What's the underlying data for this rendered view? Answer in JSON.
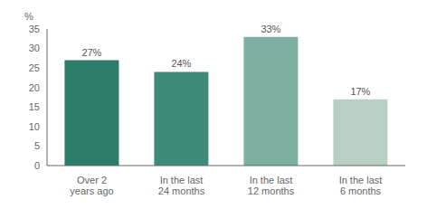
{
  "chart_data": {
    "type": "bar",
    "categories": [
      "Over 2\nyears ago",
      "In the last\n24 months",
      "In the last\n12 months",
      "In the last\n6 months"
    ],
    "values": [
      27,
      24,
      33,
      17
    ],
    "value_labels": [
      "27%",
      "24%",
      "33%",
      "17%"
    ],
    "data_labels": true,
    "colors": [
      "#2e7d6a",
      "#3d8b78",
      "#7db0a0",
      "#b8cfc3"
    ],
    "ylabel": "%",
    "ylim": [
      0,
      35
    ],
    "yticks": [
      0,
      5,
      10,
      15,
      20,
      25,
      30,
      35
    ],
    "grid": false
  }
}
